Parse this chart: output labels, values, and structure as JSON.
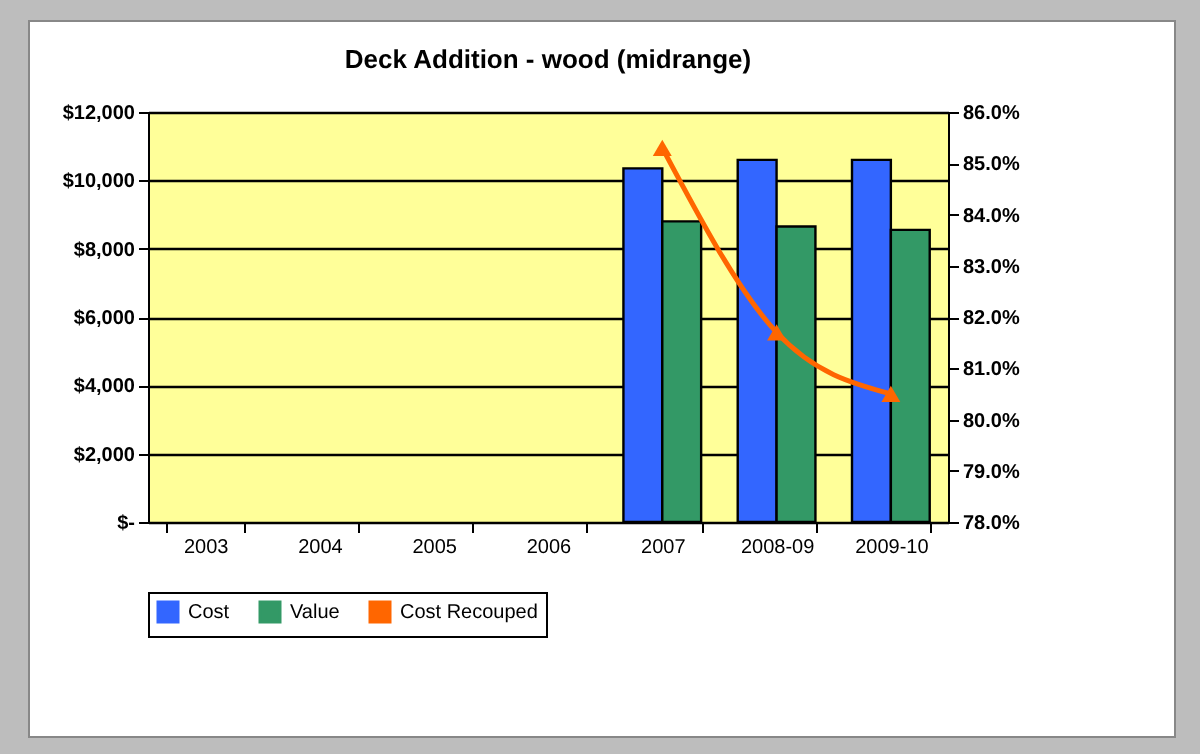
{
  "chart_data": {
    "type": "bar",
    "title": "Deck Addition - wood (midrange)",
    "categories": [
      "2003",
      "2004",
      "2005",
      "2006",
      "2007",
      "2008-09",
      "2009-10"
    ],
    "series": [
      {
        "name": "Cost",
        "color": "#3366ff",
        "values": [
          null,
          null,
          null,
          null,
          10350,
          10600,
          10600
        ]
      },
      {
        "name": "Value",
        "color": "#339966",
        "values": [
          null,
          null,
          null,
          null,
          8800,
          8650,
          8550
        ]
      },
      {
        "name": "Cost Recouped",
        "type": "line",
        "axis": "y2",
        "color": "#ff6600",
        "marker": "triangle",
        "values": [
          null,
          null,
          null,
          null,
          85.3,
          81.7,
          80.5
        ]
      }
    ],
    "ylim": [
      0,
      12000
    ],
    "yticks": [
      {
        "value": 0,
        "label": "$-"
      },
      {
        "value": 2000,
        "label": "$2,000"
      },
      {
        "value": 4000,
        "label": "$4,000"
      },
      {
        "value": 6000,
        "label": "$6,000"
      },
      {
        "value": 8000,
        "label": "$8,000"
      },
      {
        "value": 10000,
        "label": "$10,000"
      },
      {
        "value": 12000,
        "label": "$12,000"
      }
    ],
    "y2lim": [
      78,
      86
    ],
    "y2ticks": [
      {
        "value": 78,
        "label": "78.0%"
      },
      {
        "value": 79,
        "label": "79.0%"
      },
      {
        "value": 80,
        "label": "80.0%"
      },
      {
        "value": 81,
        "label": "81.0%"
      },
      {
        "value": 82,
        "label": "82.0%"
      },
      {
        "value": 83,
        "label": "83.0%"
      },
      {
        "value": 84,
        "label": "84.0%"
      },
      {
        "value": 85,
        "label": "85.0%"
      },
      {
        "value": 86,
        "label": "86.0%"
      }
    ],
    "grid": "y",
    "legend": "bottom"
  }
}
